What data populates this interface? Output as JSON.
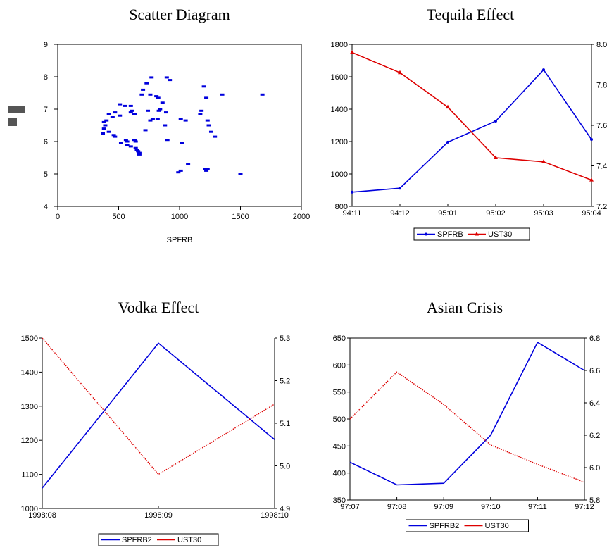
{
  "colors": {
    "blue": "#0000dd",
    "red": "#dd0000"
  },
  "chart_data": [
    {
      "id": "scatter",
      "type": "scatter",
      "title": "Scatter Diagram",
      "xlabel": "SPFRB",
      "ylabel": "",
      "xlim": [
        0,
        2000
      ],
      "ylim": [
        4,
        9
      ],
      "xticks": [
        0,
        500,
        1000,
        1500,
        2000
      ],
      "yticks": [
        4,
        5,
        6,
        7,
        8,
        9
      ],
      "points": [
        [
          770,
          7.98
        ],
        [
          895,
          7.98
        ],
        [
          920,
          7.9
        ],
        [
          730,
          7.8
        ],
        [
          700,
          7.6
        ],
        [
          690,
          7.45
        ],
        [
          760,
          7.45
        ],
        [
          810,
          7.4
        ],
        [
          825,
          7.35
        ],
        [
          860,
          7.2
        ],
        [
          510,
          7.15
        ],
        [
          550,
          7.1
        ],
        [
          600,
          7.1
        ],
        [
          610,
          6.95
        ],
        [
          600,
          6.9
        ],
        [
          470,
          6.9
        ],
        [
          420,
          6.85
        ],
        [
          450,
          6.75
        ],
        [
          510,
          6.8
        ],
        [
          630,
          6.85
        ],
        [
          740,
          6.95
        ],
        [
          840,
          7.0
        ],
        [
          830,
          6.95
        ],
        [
          890,
          6.9
        ],
        [
          1200,
          7.7
        ],
        [
          1220,
          7.35
        ],
        [
          1180,
          6.95
        ],
        [
          1170,
          6.85
        ],
        [
          1230,
          6.65
        ],
        [
          1050,
          6.65
        ],
        [
          1010,
          6.7
        ],
        [
          400,
          6.65
        ],
        [
          380,
          6.6
        ],
        [
          390,
          6.5
        ],
        [
          380,
          6.4
        ],
        [
          370,
          6.25
        ],
        [
          420,
          6.3
        ],
        [
          460,
          6.2
        ],
        [
          470,
          6.15
        ],
        [
          560,
          6.05
        ],
        [
          630,
          6.05
        ],
        [
          640,
          6.0
        ],
        [
          520,
          5.95
        ],
        [
          570,
          5.9
        ],
        [
          600,
          5.85
        ],
        [
          640,
          5.8
        ],
        [
          650,
          5.75
        ],
        [
          660,
          5.7
        ],
        [
          670,
          5.65
        ],
        [
          670,
          5.6
        ],
        [
          720,
          6.35
        ],
        [
          760,
          6.65
        ],
        [
          780,
          6.7
        ],
        [
          820,
          6.7
        ],
        [
          880,
          6.5
        ],
        [
          900,
          6.05
        ],
        [
          1020,
          5.95
        ],
        [
          1010,
          5.1
        ],
        [
          990,
          5.05
        ],
        [
          1070,
          5.3
        ],
        [
          1230,
          5.15
        ],
        [
          1210,
          5.15
        ],
        [
          1220,
          5.1
        ],
        [
          1240,
          6.5
        ],
        [
          1260,
          6.3
        ],
        [
          1290,
          6.15
        ],
        [
          1350,
          7.45
        ],
        [
          1500,
          5.0
        ],
        [
          1680,
          7.45
        ],
        [
          570,
          6.0
        ]
      ]
    },
    {
      "id": "tequila",
      "type": "line",
      "title": "Tequila Effect",
      "categories": [
        "94:11",
        "94:12",
        "95:01",
        "95:02",
        "95:03",
        "95:04"
      ],
      "ylim_left": [
        800,
        1800
      ],
      "yticks_left": [
        800,
        1000,
        1200,
        1400,
        1600,
        1800
      ],
      "ylim_right": [
        7.2,
        8.0
      ],
      "yticks_right": [
        "7.2",
        "7.4",
        "7.6",
        "7.8",
        "8.0"
      ],
      "series": [
        {
          "name": "SPFRB",
          "axis": "left",
          "color": "#0000dd",
          "marker": "dot",
          "values": [
            888,
            912,
            1196,
            1326,
            1643,
            1213
          ]
        },
        {
          "name": "UST30",
          "axis": "right",
          "color": "#dd0000",
          "marker": "triangle",
          "values": [
            7.96,
            7.86,
            7.69,
            7.44,
            7.42,
            7.33
          ]
        }
      ],
      "legend": "bottom"
    },
    {
      "id": "vodka",
      "type": "line",
      "title": "Vodka Effect",
      "categories": [
        "1998:08",
        "1998:09",
        "1998:10"
      ],
      "ylim_left": [
        1000,
        1500
      ],
      "yticks_left": [
        1000,
        1100,
        1200,
        1300,
        1400,
        1500
      ],
      "ylim_right": [
        4.9,
        5.3
      ],
      "yticks_right": [
        "4.9",
        "5.0",
        "5.1",
        "5.2",
        "5.3"
      ],
      "series": [
        {
          "name": "SPFRB2",
          "axis": "left",
          "color": "#0000dd",
          "style": "solid",
          "values": [
            1060,
            1485,
            1202
          ]
        },
        {
          "name": "UST30",
          "axis": "right",
          "color": "#dd0000",
          "style": "dotted",
          "values": [
            5.3,
            4.98,
            5.145
          ]
        }
      ],
      "legend": "bottom"
    },
    {
      "id": "asian",
      "type": "line",
      "title": "Asian Crisis",
      "categories": [
        "97:07",
        "97:08",
        "97:09",
        "97:10",
        "97:11",
        "97:12"
      ],
      "ylim_left": [
        350,
        650
      ],
      "yticks_left": [
        350,
        400,
        450,
        500,
        550,
        600,
        650
      ],
      "ylim_right": [
        5.8,
        6.8
      ],
      "yticks_right": [
        "5.8",
        "6.0",
        "6.2",
        "6.4",
        "6.6",
        "6.8"
      ],
      "series": [
        {
          "name": "SPFRB2",
          "axis": "left",
          "color": "#0000dd",
          "style": "solid",
          "values": [
            420,
            378,
            381,
            470,
            642,
            590
          ]
        },
        {
          "name": "UST30",
          "axis": "right",
          "color": "#dd0000",
          "style": "dotted",
          "values": [
            6.3,
            6.59,
            6.39,
            6.14,
            6.02,
            5.91
          ]
        }
      ],
      "legend": "bottom"
    }
  ]
}
